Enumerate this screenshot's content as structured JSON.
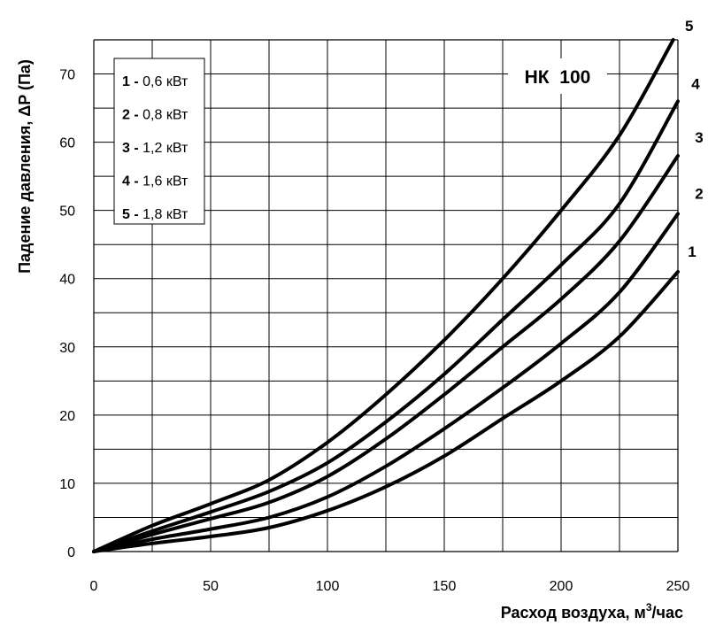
{
  "chart_data": {
    "type": "line",
    "model_label": "НК  100",
    "xlabel": "Расход воздуха, м",
    "xlabel_sup": "3",
    "xlabel_suffix": "/час",
    "ylabel": "Падение давления, ΔP (Па)",
    "xlim": [
      0,
      250
    ],
    "ylim": [
      0,
      75
    ],
    "x_ticks": [
      0,
      50,
      100,
      150,
      200,
      250
    ],
    "y_ticks": [
      0,
      10,
      20,
      30,
      40,
      50,
      60,
      70
    ],
    "x_grid_step": 25,
    "y_grid_step": 5,
    "grid": true,
    "legend_placement": "top-left",
    "line_color": "#000000",
    "series": [
      {
        "name": "1",
        "label": "0,6 кВт",
        "x": [
          0,
          25,
          50,
          75,
          100,
          125,
          150,
          175,
          200,
          225,
          250
        ],
        "y": [
          0,
          1.2,
          2.2,
          3.5,
          6,
          9.5,
          14,
          19.5,
          25,
          31.5,
          41
        ]
      },
      {
        "name": "2",
        "label": "0,8 кВт",
        "x": [
          0,
          25,
          50,
          75,
          100,
          125,
          150,
          175,
          200,
          225,
          250
        ],
        "y": [
          0,
          1.8,
          3.3,
          5,
          8,
          12.5,
          18,
          24,
          30.5,
          38,
          49.5
        ]
      },
      {
        "name": "3",
        "label": "1,2 кВт",
        "x": [
          0,
          25,
          50,
          75,
          100,
          125,
          150,
          175,
          200,
          225,
          250
        ],
        "y": [
          0,
          2.5,
          4.8,
          7.2,
          11,
          16.5,
          23,
          30,
          37,
          45.5,
          58
        ]
      },
      {
        "name": "4",
        "label": "1,6 кВт",
        "x": [
          0,
          25,
          50,
          75,
          100,
          125,
          150,
          175,
          200,
          225,
          250
        ],
        "y": [
          0,
          3,
          5.8,
          8.8,
          13,
          19,
          26,
          34,
          42,
          51,
          66
        ]
      },
      {
        "name": "5",
        "label": "1,8 кВт",
        "x": [
          0,
          25,
          50,
          75,
          100,
          125,
          150,
          175,
          200,
          225,
          248
        ],
        "y": [
          0,
          3.8,
          7,
          10.5,
          16,
          23,
          31,
          40,
          50,
          61,
          75
        ]
      }
    ]
  }
}
